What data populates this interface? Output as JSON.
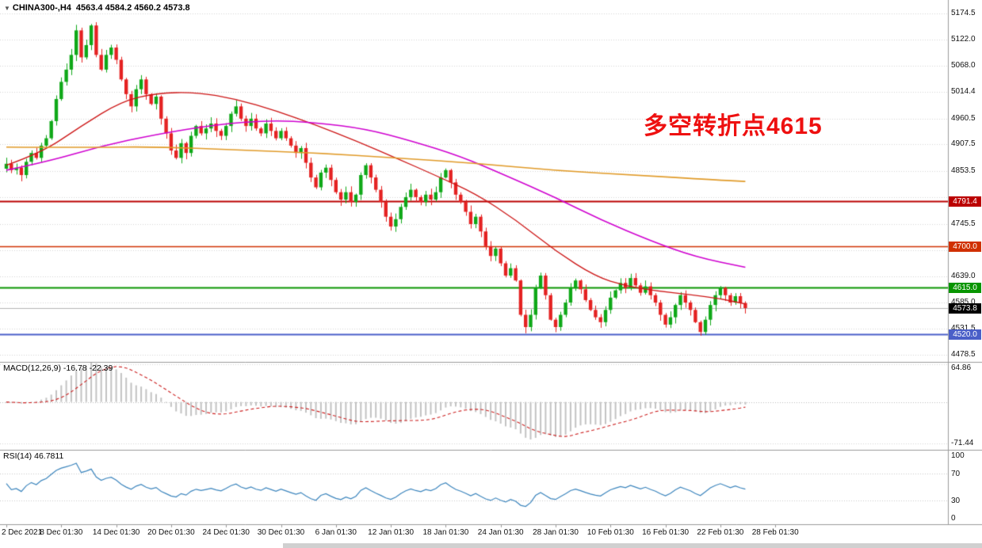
{
  "header": {
    "dropdown_icon": "▼",
    "symbol": "CHINA300-,H4",
    "quote": "4563.4 4584.2 4560.2 4573.8"
  },
  "annotation": {
    "text": "多空转折点4615",
    "color": "#ee1010"
  },
  "chart_data": {
    "type": "candlestick",
    "symbol": "CHINA300-",
    "timeframe": "H4",
    "current_bar": {
      "open": 4563.4,
      "high": 4584.2,
      "low": 4560.2,
      "close": 4573.8
    },
    "price_axis": {
      "max": 5174.5,
      "min": 4478.5,
      "ticks": [
        {
          "value": 5174.5,
          "label": "5174.5"
        },
        {
          "value": 5122.0,
          "label": "5122.0"
        },
        {
          "value": 5068.0,
          "label": "5068.0"
        },
        {
          "value": 5014.4,
          "label": "5014.4"
        },
        {
          "value": 4960.5,
          "label": "4960.5"
        },
        {
          "value": 4907.5,
          "label": "4907.5"
        },
        {
          "value": 4853.5,
          "label": "4853.5"
        },
        {
          "value": 4799.5,
          "label": ""
        },
        {
          "value": 4745.5,
          "label": "4745.5"
        },
        {
          "value": 4691.5,
          "label": ""
        },
        {
          "value": 4639.0,
          "label": "4639.0"
        },
        {
          "value": 4585.0,
          "label": "4585.0"
        },
        {
          "value": 4531.5,
          "label": "4531.5"
        },
        {
          "value": 4478.5,
          "label": "4478.5"
        }
      ]
    },
    "candles": {
      "closes": [
        4868,
        4855,
        4860,
        4845,
        4872,
        4890,
        4880,
        4905,
        4920,
        4955,
        5000,
        5035,
        5060,
        5090,
        5140,
        5085,
        5110,
        5150,
        5090,
        5060,
        5090,
        5105,
        5080,
        5040,
        5010,
        4985,
        5020,
        5040,
        5010,
        4990,
        5005,
        4960,
        4930,
        4895,
        4880,
        4910,
        4890,
        4925,
        4945,
        4930,
        4940,
        4950,
        4935,
        4925,
        4945,
        4970,
        4985,
        4960,
        4945,
        4960,
        4940,
        4930,
        4950,
        4935,
        4920,
        4935,
        4920,
        4905,
        4890,
        4900,
        4870,
        4840,
        4820,
        4850,
        4860,
        4835,
        4810,
        4795,
        4810,
        4790,
        4805,
        4845,
        4865,
        4840,
        4815,
        4790,
        4760,
        4740,
        4755,
        4780,
        4800,
        4815,
        4800,
        4790,
        4805,
        4795,
        4810,
        4840,
        4855,
        4830,
        4805,
        4790,
        4770,
        4745,
        4760,
        4730,
        4700,
        4680,
        4695,
        4665,
        4640,
        4655,
        4630,
        4560,
        4535,
        4560,
        4615,
        4640,
        4600,
        4550,
        4535,
        4560,
        4585,
        4615,
        4630,
        4612,
        4590,
        4570,
        4555,
        4545,
        4570,
        4595,
        4610,
        4625,
        4615,
        4635,
        4620,
        4605,
        4618,
        4600,
        4585,
        4560,
        4540,
        4555,
        4580,
        4600,
        4585,
        4570,
        4545,
        4525,
        4550,
        4580,
        4600,
        4615,
        4600,
        4585,
        4598,
        4584,
        4573.8
      ],
      "bull_color": "#0fa818",
      "bear_color": "#e42222"
    },
    "ma_lines": [
      {
        "name": "ma-fast-red",
        "color": "#cc1414",
        "width": 1.3,
        "points": [
          [
            0,
            4865
          ],
          [
            7,
            4890
          ],
          [
            15,
            4945
          ],
          [
            23,
            4995
          ],
          [
            30,
            5012
          ],
          [
            38,
            5014
          ],
          [
            46,
            5000
          ],
          [
            54,
            4976
          ],
          [
            62,
            4947
          ],
          [
            70,
            4915
          ],
          [
            78,
            4880
          ],
          [
            86,
            4844
          ],
          [
            94,
            4807
          ],
          [
            102,
            4754
          ],
          [
            110,
            4690
          ],
          [
            118,
            4638
          ],
          [
            124,
            4619
          ],
          [
            130,
            4609
          ],
          [
            137,
            4601
          ],
          [
            143,
            4593
          ],
          [
            148,
            4582
          ]
        ]
      },
      {
        "name": "ma-medium-magenta",
        "color": "#cf00cf",
        "width": 1.6,
        "points": [
          [
            0,
            4855
          ],
          [
            8,
            4872
          ],
          [
            19,
            4904
          ],
          [
            30,
            4928
          ],
          [
            42,
            4948
          ],
          [
            53,
            4957
          ],
          [
            62,
            4952
          ],
          [
            72,
            4939
          ],
          [
            81,
            4915
          ],
          [
            91,
            4883
          ],
          [
            100,
            4844
          ],
          [
            110,
            4799
          ],
          [
            119,
            4754
          ],
          [
            129,
            4711
          ],
          [
            138,
            4678
          ],
          [
            148,
            4657
          ]
        ]
      },
      {
        "name": "ma-slow-orange",
        "color": "#e09a28",
        "width": 1.6,
        "points": [
          [
            0,
            4902
          ],
          [
            15,
            4901
          ],
          [
            30,
            4903
          ],
          [
            46,
            4896
          ],
          [
            62,
            4890
          ],
          [
            78,
            4880
          ],
          [
            94,
            4869
          ],
          [
            110,
            4854
          ],
          [
            126,
            4845
          ],
          [
            142,
            4835
          ],
          [
            148,
            4832
          ]
        ]
      }
    ],
    "hlines": [
      {
        "price": 4791.4,
        "label": "4791.4",
        "color": "#bb0000",
        "width": 2
      },
      {
        "price": 4700.0,
        "label": "4700.0",
        "color": "#d03000",
        "width": 1.5
      },
      {
        "price": 4615.0,
        "label": "4615.0",
        "color": "#089500",
        "width": 2
      },
      {
        "price": 4520.0,
        "label": "4520.0",
        "color": "#4a5fc8",
        "width": 2
      }
    ],
    "last_price": {
      "value": 4573.8,
      "label": "4573.8",
      "badge_color": "#000000",
      "line_color": "#b4b4b4"
    },
    "macd": {
      "name": "MACD(12,26,9)",
      "values": "-16.78 -22.39",
      "fast": 12,
      "slow": 26,
      "signal": 9,
      "axis_max": 64.86,
      "axis_min": -71.44,
      "axis_labels": [
        {
          "value": 64.86,
          "label": "64.86"
        },
        {
          "value": -71.44,
          "label": "-71.44"
        }
      ],
      "histogram_color": "#c2c2c2",
      "signal_color": "#cc2020"
    },
    "rsi": {
      "name": "RSI(14)",
      "value": "46.7811",
      "period": 14,
      "axis_labels": [
        {
          "value": 100,
          "label": "100"
        },
        {
          "value": 70,
          "label": "70"
        },
        {
          "value": 30,
          "label": "30"
        },
        {
          "value": 0,
          "label": "0"
        }
      ],
      "levels": [
        70,
        30
      ],
      "line_color": "#3c85bd"
    },
    "time_axis": {
      "labels": [
        "2 Dec 2021",
        "8 Dec 01:30",
        "14 Dec 01:30",
        "20 Dec 01:30",
        "24 Dec 01:30",
        "30 Dec 01:30",
        "6 Jan 01:30",
        "12 Jan 01:30",
        "18 Jan 01:30",
        "24 Jan 01:30",
        "28 Jan 01:30",
        "10 Feb 01:30",
        "16 Feb 01:30",
        "22 Feb 01:30",
        "28 Feb 01:30"
      ]
    }
  },
  "colors": {
    "background": "#ffffff",
    "grid": "#d4d4d4",
    "separator": "#9a9a9a",
    "axis_text": "#111111"
  }
}
